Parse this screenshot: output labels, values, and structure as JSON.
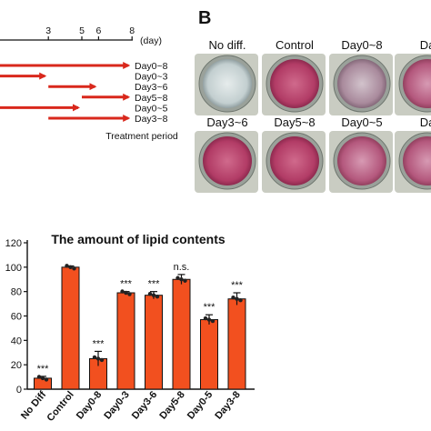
{
  "panel_b": {
    "letter": "B"
  },
  "timeline": {
    "ticks": [
      "3",
      "5",
      "6",
      "8"
    ],
    "unit": "(day)",
    "rows": [
      {
        "label": "Day0~8",
        "start": 0,
        "end": 8
      },
      {
        "label": "Day0~3",
        "start": 0,
        "end": 3
      },
      {
        "label": "Day3~6",
        "start": 3,
        "end": 6
      },
      {
        "label": "Day5~8",
        "start": 5,
        "end": 8
      },
      {
        "label": "Day0~5",
        "start": 0,
        "end": 5
      },
      {
        "label": "Day3~8",
        "start": 3,
        "end": 8
      }
    ],
    "caption": "Treatment period"
  },
  "wells": {
    "row1": [
      {
        "label": "No diff.",
        "stain": "none"
      },
      {
        "label": "Control",
        "stain": "strong"
      },
      {
        "label": "Day0~8",
        "stain": "faint"
      },
      {
        "label": "Da",
        "stain": "medium"
      }
    ],
    "row2": [
      {
        "label": "Day3~6",
        "stain": "strong"
      },
      {
        "label": "Day5~8",
        "stain": "strong"
      },
      {
        "label": "Day0~5",
        "stain": "medium"
      },
      {
        "label": "Da",
        "stain": "medium"
      }
    ]
  },
  "colors": {
    "bar": "#f2501f",
    "arrow": "#d9281c",
    "well_strong": "#b8406a",
    "well_faint": "#a98a9c"
  },
  "chart_data": {
    "type": "bar",
    "title": "The amount of lipid contents",
    "categories": [
      "No Diff",
      "Control",
      "Day0-8",
      "Day0-3",
      "Day3-6",
      "Day5-8",
      "Day0-5",
      "Day3-8"
    ],
    "values": [
      9,
      100,
      25,
      79,
      77,
      90,
      57,
      74
    ],
    "errors": [
      1.5,
      1,
      6,
      1,
      3,
      4,
      4,
      5
    ],
    "significance": [
      "***",
      "",
      "***",
      "***",
      "***",
      "n.s.",
      "***",
      "***"
    ],
    "yticks": [
      "0",
      "20",
      "40",
      "60",
      "80",
      "100",
      "120"
    ],
    "ylim": [
      0,
      120
    ]
  }
}
